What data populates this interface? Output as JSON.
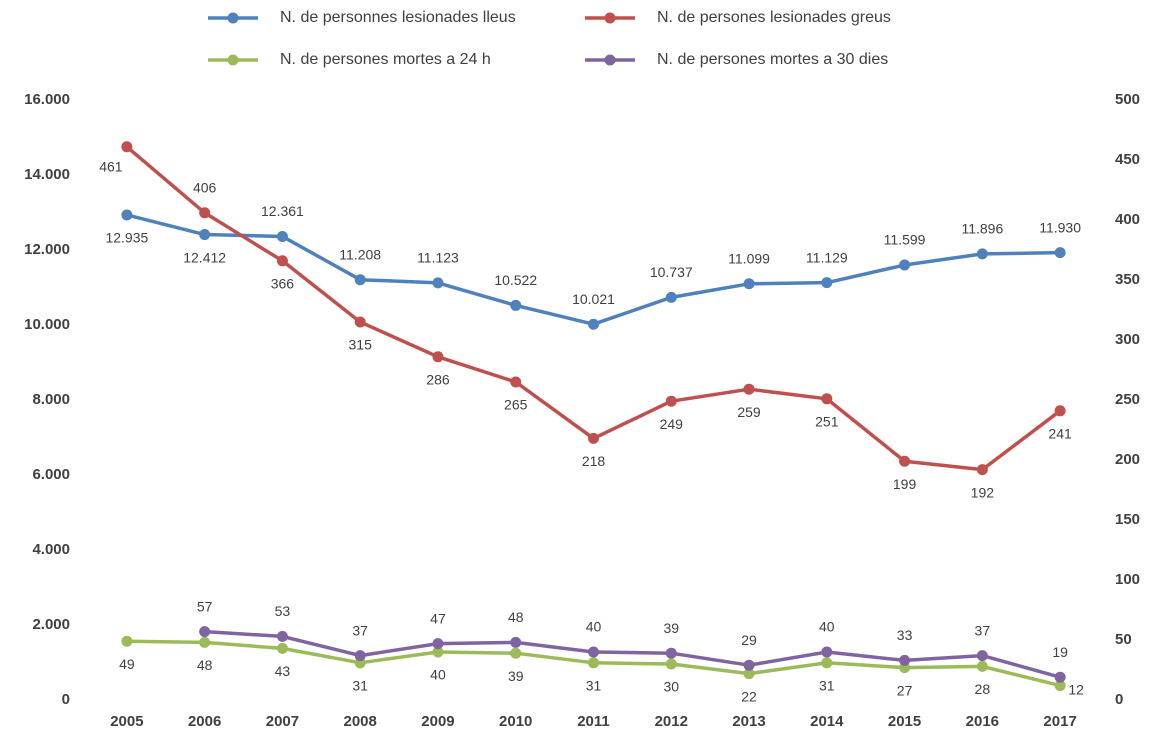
{
  "chart_data": {
    "type": "line",
    "categories": [
      "2005",
      "2006",
      "2007",
      "2008",
      "2009",
      "2010",
      "2011",
      "2012",
      "2013",
      "2014",
      "2015",
      "2016",
      "2017"
    ],
    "series": [
      {
        "name": "N. de personnes lesionades lleus",
        "color": "#4f81bd",
        "axis": "y",
        "values": [
          12935,
          12412,
          12361,
          11208,
          11123,
          10522,
          10021,
          10737,
          11099,
          11129,
          11599,
          11896,
          11930
        ],
        "value_labels": [
          "12.935",
          "12.412",
          "12.361",
          "11.208",
          "11.123",
          "10.522",
          "10.021",
          "10.737",
          "11.099",
          "11.129",
          "11.599",
          "11.896",
          "11.930"
        ]
      },
      {
        "name": "N. de persones lesionades greus",
        "color": "#c0504d",
        "axis": "y2",
        "values": [
          461,
          406,
          366,
          315,
          286,
          265,
          218,
          249,
          259,
          251,
          199,
          192,
          241
        ]
      },
      {
        "name": "N. de persones mortes a 24 h",
        "color": "#9bbb59",
        "axis": "y2",
        "values": [
          49,
          48,
          43,
          31,
          40,
          39,
          31,
          30,
          22,
          31,
          27,
          28,
          12
        ]
      },
      {
        "name": "N. de persones mortes a 30 dies",
        "color": "#8064a2",
        "axis": "y2",
        "values": [
          null,
          57,
          53,
          37,
          47,
          48,
          40,
          39,
          29,
          40,
          33,
          37,
          19
        ]
      }
    ],
    "ylim": [
      0,
      16000
    ],
    "yticks": [
      0,
      {
        "value": 2000,
        "label": "2.000"
      },
      {
        "value": 4000,
        "label": "4.000"
      },
      {
        "value": 6000,
        "label": "6.000"
      },
      {
        "value": 8000,
        "label": "8.000"
      },
      {
        "value": 10000,
        "label": "10.000"
      },
      {
        "value": 12000,
        "label": "12.000"
      },
      {
        "value": 14000,
        "label": "14.000"
      },
      {
        "value": 16000,
        "label": "16.000"
      }
    ],
    "y2lim": [
      0,
      500
    ],
    "y2ticks": [
      0,
      50,
      100,
      150,
      200,
      250,
      300,
      350,
      400,
      450,
      500
    ],
    "grid": false,
    "legend": "top"
  }
}
